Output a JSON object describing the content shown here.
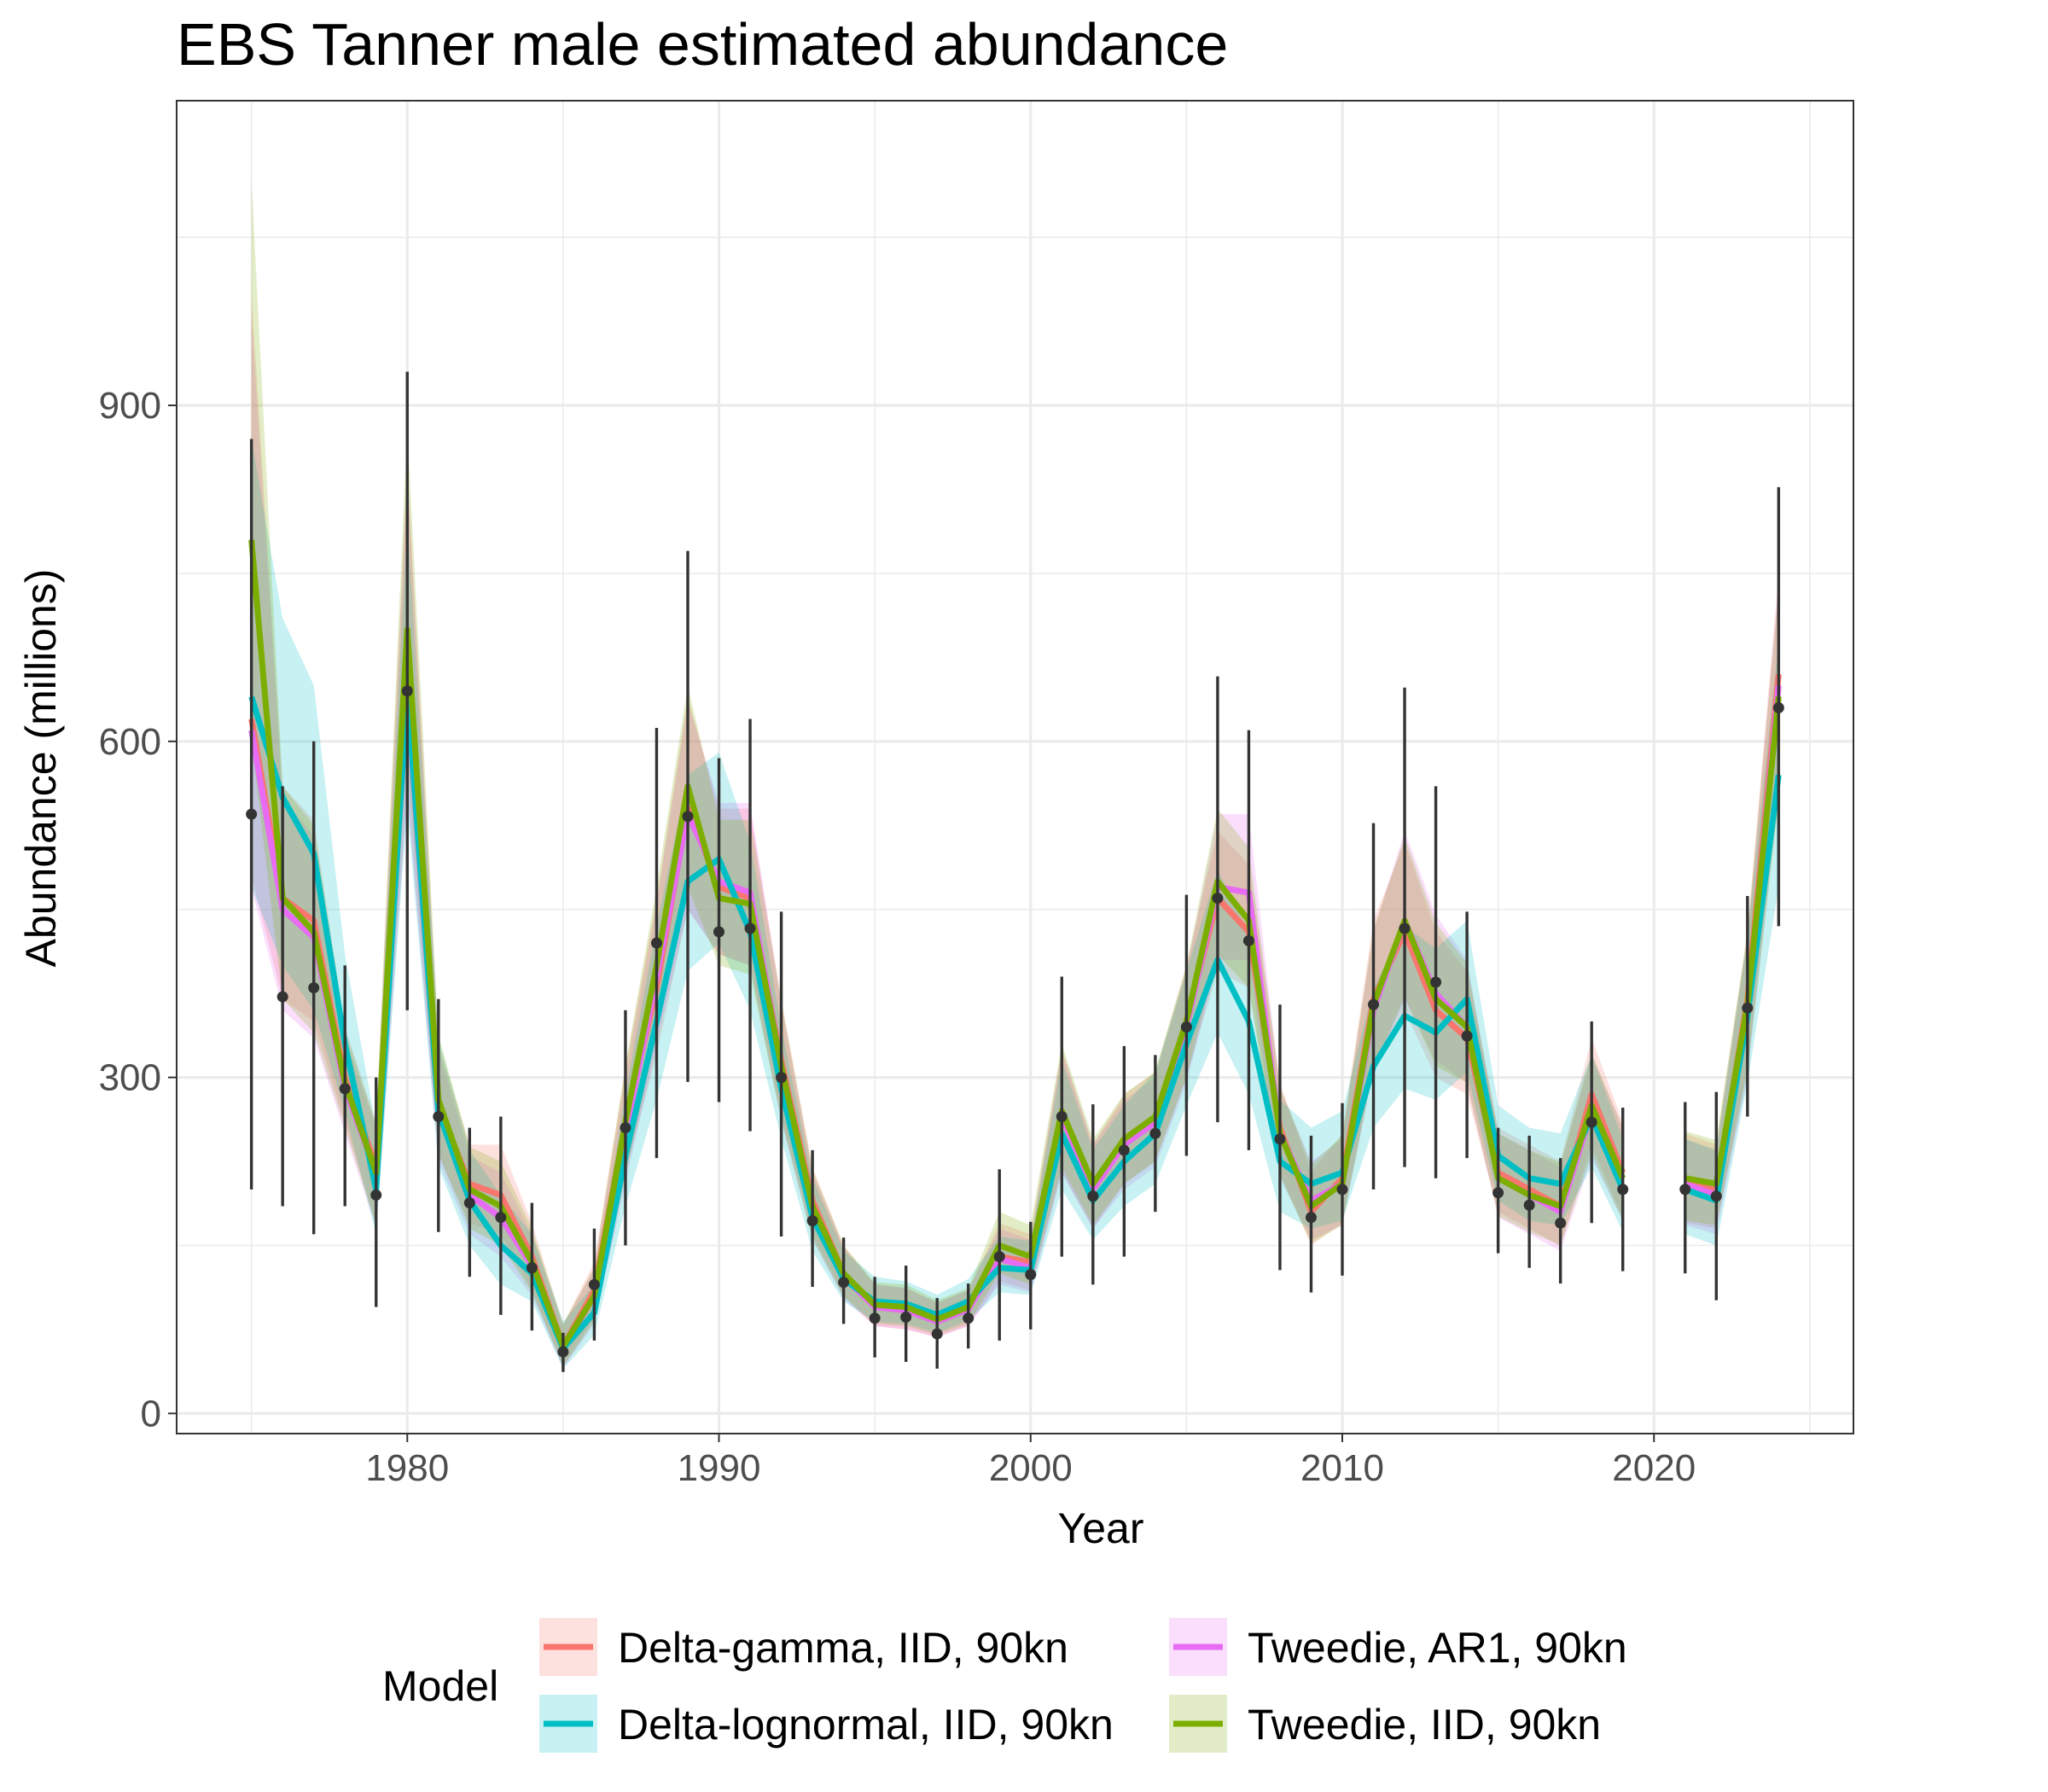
{
  "chart_data": {
    "type": "line",
    "title": "EBS Tanner male estimated abundance",
    "xlabel": "Year",
    "ylabel": "Abundance (millions)",
    "xlim": [
      1972.6,
      2026.4
    ],
    "ylim": [
      -18,
      1172
    ],
    "x_ticks": [
      1980,
      1990,
      2000,
      2010,
      2020
    ],
    "y_ticks": [
      0,
      300,
      600,
      900
    ],
    "grid": true,
    "legend": {
      "title": "Model",
      "position": "bottom",
      "order": [
        0,
        2,
        1,
        3
      ]
    },
    "series": [
      {
        "name": "Delta-gamma, IID, 90kn",
        "color": "#F8766D",
        "x": [
          1975,
          1976,
          1977,
          1978,
          1979,
          1980,
          1981,
          1982,
          1983,
          1984,
          1985,
          1986,
          1987,
          1988,
          1989,
          1990,
          1991,
          1992,
          1993,
          1994,
          1995,
          1996,
          1997,
          1998,
          1999,
          2000,
          2001,
          2002,
          2003,
          2004,
          2005,
          2006,
          2007,
          2008,
          2009,
          2010,
          2011,
          2012,
          2013,
          2014,
          2015,
          2016,
          2017,
          2018,
          2019,
          null,
          2021,
          2022,
          2023,
          2024
        ],
        "y": [
          620,
          460,
          440,
          300,
          220,
          650,
          275,
          205,
          195,
          140,
          60,
          110,
          260,
          380,
          540,
          470,
          460,
          315,
          190,
          125,
          95,
          92,
          82,
          93,
          140,
          135,
          265,
          200,
          245,
          265,
          350,
          460,
          430,
          255,
          180,
          210,
          370,
          430,
          360,
          335,
          215,
          200,
          185,
          285,
          215,
          null,
          210,
          200,
          370,
          660
        ],
        "lower": [
          480,
          370,
          350,
          260,
          170,
          560,
          230,
          170,
          160,
          110,
          42,
          85,
          215,
          320,
          450,
          410,
          400,
          265,
          160,
          105,
          78,
          75,
          68,
          78,
          118,
          110,
          215,
          165,
          205,
          225,
          300,
          395,
          380,
          215,
          150,
          170,
          310,
          360,
          300,
          285,
          180,
          165,
          150,
          240,
          175,
          null,
          170,
          165,
          310,
          560
        ],
        "upper": [
          1000,
          560,
          530,
          345,
          260,
          850,
          330,
          240,
          240,
          170,
          80,
          135,
          310,
          460,
          640,
          540,
          540,
          370,
          220,
          150,
          115,
          112,
          99,
          110,
          170,
          160,
          325,
          240,
          285,
          305,
          400,
          520,
          490,
          295,
          215,
          250,
          440,
          510,
          430,
          395,
          255,
          240,
          225,
          335,
          260,
          null,
          250,
          240,
          430,
          750
        ]
      },
      {
        "name": "Tweedie, AR1, 90kn",
        "color": "#E76BF3",
        "x": [
          1975,
          1976,
          1977,
          1978,
          1979,
          1980,
          1981,
          1982,
          1983,
          1984,
          1985,
          1986,
          1987,
          1988,
          1989,
          1990,
          1991,
          1992,
          1993,
          1994,
          1995,
          1996,
          1997,
          1998,
          1999,
          2000,
          2001,
          2002,
          2003,
          2004,
          2005,
          2006,
          2007,
          2008,
          2009,
          2010,
          2011,
          2012,
          2013,
          2014,
          2015,
          2016,
          2017,
          2018,
          2019,
          null,
          2021,
          2022,
          2023,
          2024
        ],
        "y": [
          610,
          450,
          425,
          290,
          215,
          640,
          270,
          195,
          175,
          132,
          58,
          105,
          250,
          390,
          535,
          475,
          465,
          310,
          185,
          122,
          95,
          92,
          82,
          93,
          138,
          130,
          265,
          200,
          240,
          260,
          345,
          470,
          465,
          250,
          190,
          205,
          360,
          440,
          375,
          345,
          210,
          195,
          180,
          270,
          210,
          null,
          205,
          195,
          360,
          650
        ],
        "lower": [
          470,
          360,
          335,
          250,
          165,
          550,
          225,
          160,
          140,
          105,
          40,
          80,
          205,
          330,
          450,
          410,
          400,
          260,
          155,
          102,
          78,
          75,
          68,
          78,
          115,
          108,
          215,
          165,
          200,
          220,
          295,
          405,
          405,
          210,
          155,
          168,
          305,
          370,
          315,
          295,
          175,
          160,
          145,
          228,
          172,
          null,
          168,
          160,
          300,
          550
        ],
        "upper": [
          980,
          550,
          515,
          335,
          255,
          840,
          325,
          230,
          215,
          160,
          78,
          130,
          300,
          455,
          635,
          545,
          545,
          365,
          215,
          148,
          115,
          112,
          99,
          110,
          165,
          155,
          325,
          240,
          280,
          300,
          395,
          535,
          535,
          290,
          225,
          245,
          430,
          520,
          445,
          405,
          250,
          235,
          220,
          320,
          255,
          null,
          245,
          235,
          425,
          740
        ]
      },
      {
        "name": "Delta-lognormal, IID, 90kn",
        "color": "#00BFC4",
        "x": [
          1975,
          1976,
          1977,
          1978,
          1979,
          1980,
          1981,
          1982,
          1983,
          1984,
          1985,
          1986,
          1987,
          1988,
          1989,
          1990,
          1991,
          1992,
          1993,
          1994,
          1995,
          1996,
          1997,
          1998,
          1999,
          2000,
          2001,
          2002,
          2003,
          2004,
          2005,
          2006,
          2007,
          2008,
          2009,
          2010,
          2011,
          2012,
          2013,
          2014,
          2015,
          2016,
          2017,
          2018,
          2019,
          null,
          2021,
          2022,
          2023,
          2024
        ],
        "y": [
          640,
          550,
          500,
          330,
          200,
          645,
          270,
          190,
          150,
          125,
          58,
          90,
          230,
          350,
          475,
          495,
          430,
          290,
          175,
          120,
          100,
          98,
          88,
          100,
          130,
          128,
          250,
          190,
          225,
          250,
          330,
          405,
          350,
          225,
          205,
          215,
          310,
          355,
          340,
          370,
          230,
          210,
          205,
          265,
          200,
          null,
          200,
          190,
          355,
          570
        ],
        "lower": [
          470,
          400,
          360,
          270,
          160,
          540,
          220,
          150,
          115,
          100,
          40,
          70,
          185,
          280,
          395,
          420,
          360,
          245,
          145,
          100,
          82,
          80,
          72,
          83,
          108,
          106,
          200,
          155,
          185,
          205,
          275,
          340,
          285,
          180,
          165,
          172,
          255,
          290,
          280,
          305,
          190,
          172,
          168,
          220,
          162,
          null,
          160,
          150,
          295,
          470
        ],
        "upper": [
          870,
          710,
          650,
          410,
          255,
          800,
          335,
          235,
          195,
          160,
          82,
          115,
          285,
          435,
          570,
          590,
          510,
          345,
          210,
          145,
          122,
          118,
          106,
          120,
          158,
          154,
          315,
          235,
          275,
          305,
          395,
          485,
          430,
          280,
          255,
          270,
          380,
          435,
          415,
          440,
          275,
          255,
          250,
          320,
          245,
          null,
          245,
          235,
          425,
          690
        ]
      },
      {
        "name": "Tweedie, IID, 90kn",
        "color": "#7CAE00",
        "x": [
          1975,
          1976,
          1977,
          1978,
          1979,
          1980,
          1981,
          1982,
          1983,
          1984,
          1985,
          1986,
          1987,
          1988,
          1989,
          1990,
          1991,
          1992,
          1993,
          1994,
          1995,
          1996,
          1997,
          1998,
          1999,
          2000,
          2001,
          2002,
          2003,
          2004,
          2005,
          2006,
          2007,
          2008,
          2009,
          2010,
          2011,
          2012,
          2013,
          2014,
          2015,
          2016,
          2017,
          2018,
          2019,
          null,
          2021,
          2022,
          2023,
          2024
        ],
        "y": [
          780,
          460,
          430,
          295,
          215,
          700,
          280,
          200,
          185,
          135,
          60,
          105,
          260,
          400,
          560,
          460,
          455,
          310,
          185,
          125,
          97,
          95,
          84,
          95,
          150,
          140,
          270,
          205,
          245,
          265,
          350,
          475,
          440,
          250,
          185,
          205,
          365,
          440,
          370,
          345,
          210,
          195,
          185,
          275,
          210,
          null,
          210,
          205,
          365,
          640
        ],
        "lower": [
          600,
          370,
          340,
          255,
          168,
          590,
          232,
          165,
          150,
          108,
          42,
          82,
          212,
          338,
          470,
          400,
          392,
          262,
          156,
          104,
          80,
          78,
          70,
          80,
          125,
          115,
          220,
          168,
          205,
          225,
          300,
          410,
          380,
          212,
          152,
          168,
          308,
          372,
          310,
          295,
          176,
          162,
          150,
          232,
          172,
          null,
          172,
          168,
          305,
          545
        ],
        "upper": [
          1100,
          560,
          525,
          342,
          258,
          880,
          338,
          238,
          225,
          165,
          80,
          130,
          310,
          470,
          650,
          530,
          530,
          368,
          218,
          150,
          117,
          115,
          101,
          112,
          180,
          168,
          330,
          245,
          285,
          305,
          400,
          540,
          505,
          292,
          222,
          248,
          432,
          515,
          438,
          402,
          250,
          235,
          224,
          322,
          255,
          null,
          252,
          244,
          430,
          735
        ]
      }
    ],
    "observed": {
      "x": [
        1975,
        1976,
        1977,
        1978,
        1979,
        1980,
        1981,
        1982,
        1983,
        1984,
        1985,
        1986,
        1987,
        1988,
        1989,
        1990,
        1991,
        1992,
        1993,
        1994,
        1995,
        1996,
        1997,
        1998,
        1999,
        2000,
        2001,
        2002,
        2003,
        2004,
        2005,
        2006,
        2007,
        2008,
        2009,
        2010,
        2011,
        2012,
        2013,
        2014,
        2015,
        2016,
        2017,
        2018,
        2019,
        2021,
        2022,
        2023,
        2024
      ],
      "y": [
        535,
        372,
        380,
        290,
        195,
        645,
        265,
        188,
        175,
        130,
        55,
        115,
        255,
        420,
        533,
        430,
        433,
        300,
        172,
        117,
        85,
        86,
        71,
        85,
        140,
        124,
        265,
        194,
        235,
        250,
        345,
        460,
        422,
        245,
        175,
        200,
        365,
        433,
        385,
        337,
        197,
        186,
        170,
        260,
        200,
        200,
        194,
        362,
        630
      ],
      "lower": [
        200,
        185,
        160,
        185,
        95,
        360,
        162,
        122,
        88,
        74,
        37,
        65,
        150,
        228,
        296,
        278,
        252,
        158,
        113,
        80,
        50,
        46,
        40,
        58,
        65,
        75,
        140,
        115,
        140,
        180,
        230,
        260,
        235,
        128,
        108,
        123,
        200,
        220,
        210,
        228,
        143,
        130,
        116,
        170,
        127,
        125,
        101,
        265,
        435
      ],
      "upper": [
        870,
        560,
        600,
        400,
        300,
        930,
        370,
        255,
        265,
        188,
        72,
        165,
        360,
        612,
        770,
        585,
        620,
        448,
        235,
        157,
        122,
        132,
        103,
        116,
        218,
        171,
        390,
        276,
        328,
        320,
        463,
        658,
        610,
        365,
        248,
        277,
        527,
        648,
        560,
        448,
        255,
        248,
        228,
        350,
        273,
        278,
        287,
        462,
        827
      ]
    }
  }
}
